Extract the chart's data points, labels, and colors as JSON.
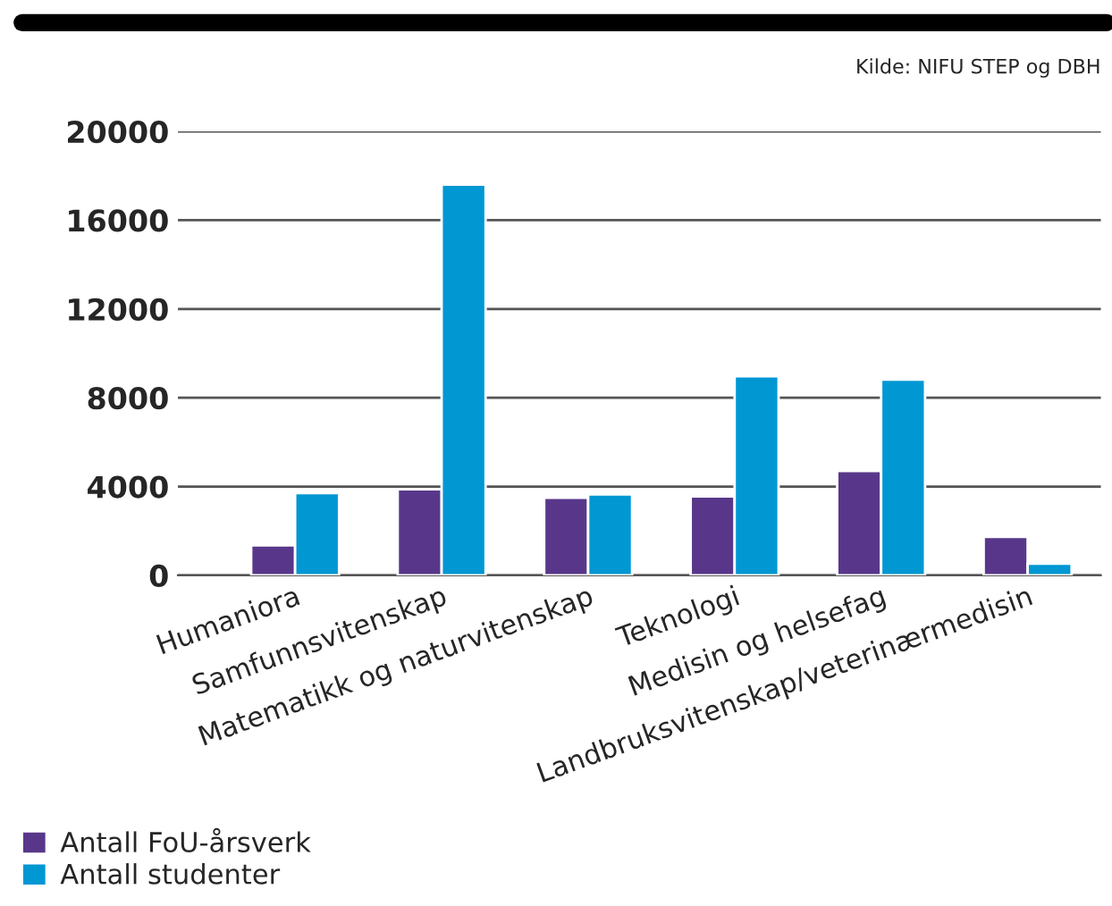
{
  "chart_data": {
    "type": "bar",
    "categories": [
      "Humaniora",
      "Samfunnsvitenskap",
      "Matematikk og naturvitenskap",
      "Teknologi",
      "Medisin og helsefag",
      "Landbruksvitenskap/veterinærmedisin"
    ],
    "series": [
      {
        "name": "Antall FoU-årsverk",
        "color": "#58378a",
        "values": [
          1350,
          3880,
          3490,
          3550,
          4700,
          1730
        ]
      },
      {
        "name": "Antall studenter",
        "color": "#0097d3",
        "values": [
          3700,
          17600,
          3640,
          8970,
          8820,
          520
        ]
      }
    ],
    "ylim": [
      0,
      20000
    ],
    "yticks": [
      0,
      4000,
      8000,
      12000,
      16000,
      20000
    ],
    "grid": "y",
    "legend": "bottom left",
    "annotations": [
      "Kilde: NIFU STEP og DBH"
    ]
  }
}
